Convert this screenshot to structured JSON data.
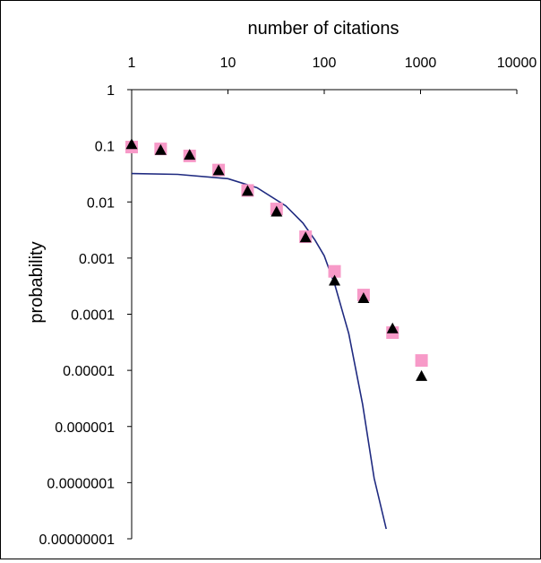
{
  "chart_data": {
    "type": "scatter",
    "title": "",
    "xlabel": "number of citations",
    "ylabel": "probability",
    "x_axis_position": "top",
    "x_scale": "log",
    "y_scale": "log",
    "xlim": [
      1,
      10000
    ],
    "ylim": [
      1e-08,
      1
    ],
    "x_tick_labels": [
      "1",
      "10",
      "100",
      "1000",
      "10000"
    ],
    "y_tick_labels": [
      "1",
      "0.1",
      "0.01",
      "0.001",
      "0.0001",
      "0.00001",
      "0.000001",
      "0.0000001",
      "0.00000001"
    ],
    "grid": false,
    "legend": "none",
    "series": [
      {
        "marker": "square",
        "color": "#f79ac8",
        "points": [
          {
            "x": 1,
            "y": 0.095
          },
          {
            "x": 2,
            "y": 0.088
          },
          {
            "x": 4,
            "y": 0.066
          },
          {
            "x": 8,
            "y": 0.037
          },
          {
            "x": 16,
            "y": 0.016
          },
          {
            "x": 32,
            "y": 0.0075
          },
          {
            "x": 64,
            "y": 0.0024
          },
          {
            "x": 128,
            "y": 0.00058
          },
          {
            "x": 256,
            "y": 0.00022
          },
          {
            "x": 512,
            "y": 4.7e-05
          },
          {
            "x": 1024,
            "y": 1.5e-05
          }
        ]
      },
      {
        "marker": "triangle",
        "color": "#000000",
        "points": [
          {
            "x": 1,
            "y": 0.105
          },
          {
            "x": 2,
            "y": 0.083
          },
          {
            "x": 4,
            "y": 0.068
          },
          {
            "x": 8,
            "y": 0.036
          },
          {
            "x": 16,
            "y": 0.0155
          },
          {
            "x": 32,
            "y": 0.0066
          },
          {
            "x": 64,
            "y": 0.0023
          },
          {
            "x": 128,
            "y": 0.00039
          },
          {
            "x": 256,
            "y": 0.00019
          },
          {
            "x": 512,
            "y": 5.5e-05
          },
          {
            "x": 1024,
            "y": 7.8e-06
          }
        ]
      },
      {
        "marker": "line",
        "color": "#1f2a80",
        "points": [
          {
            "x": 1,
            "y": 0.032
          },
          {
            "x": 3,
            "y": 0.031
          },
          {
            "x": 10,
            "y": 0.026
          },
          {
            "x": 20,
            "y": 0.018
          },
          {
            "x": 40,
            "y": 0.0085
          },
          {
            "x": 60,
            "y": 0.0042
          },
          {
            "x": 80,
            "y": 0.0021
          },
          {
            "x": 100,
            "y": 0.0011
          },
          {
            "x": 130,
            "y": 0.00032
          },
          {
            "x": 180,
            "y": 4.5e-05
          },
          {
            "x": 250,
            "y": 2.5e-06
          },
          {
            "x": 330,
            "y": 1.2e-07
          },
          {
            "x": 440,
            "y": 1.5e-08
          }
        ]
      }
    ]
  }
}
